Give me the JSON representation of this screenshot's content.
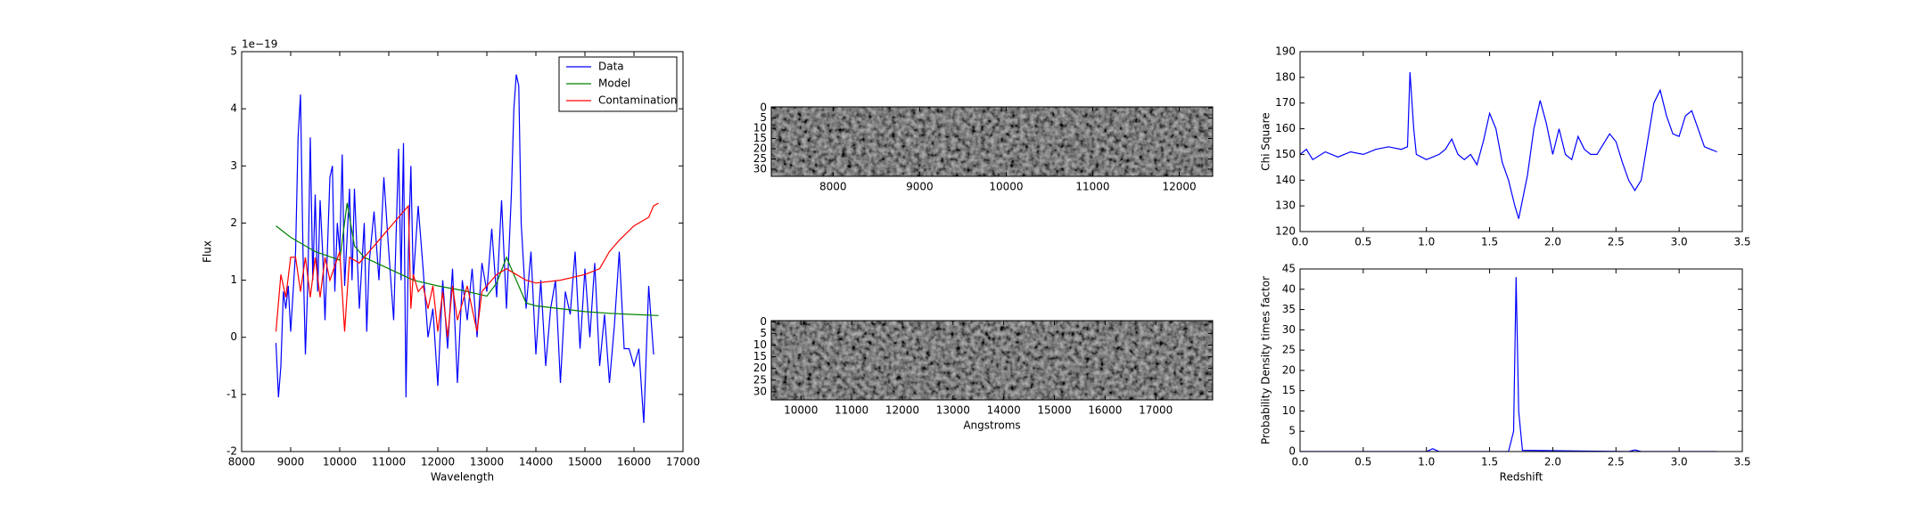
{
  "chart_data": [
    {
      "type": "line",
      "xlabel": "Wavelength",
      "ylabel": "Flux",
      "y_offset_label": "1e−19",
      "xlim": [
        8000,
        17000
      ],
      "xticks": [
        8000,
        9000,
        10000,
        11000,
        12000,
        13000,
        14000,
        15000,
        16000,
        17000
      ],
      "ylim": [
        -2,
        5
      ],
      "yticks": [
        -2,
        -1,
        0,
        1,
        2,
        3,
        4,
        5
      ],
      "legend": "upper right",
      "series": [
        {
          "name": "Data",
          "color": "#0000ff",
          "x": [
            8700,
            8750,
            8800,
            8850,
            8900,
            8950,
            9000,
            9100,
            9150,
            9200,
            9250,
            9300,
            9350,
            9400,
            9450,
            9500,
            9550,
            9600,
            9650,
            9700,
            9800,
            9850,
            9900,
            9950,
            10000,
            10050,
            10100,
            10200,
            10250,
            10300,
            10400,
            10500,
            10550,
            10600,
            10700,
            10800,
            10900,
            11000,
            11100,
            11200,
            11250,
            11300,
            11350,
            11400,
            11450,
            11500,
            11600,
            11700,
            11800,
            11900,
            12000,
            12100,
            12200,
            12300,
            12400,
            12500,
            12600,
            12700,
            12800,
            12900,
            13000,
            13100,
            13200,
            13300,
            13400,
            13500,
            13550,
            13600,
            13650,
            13700,
            13800,
            13900,
            14000,
            14100,
            14200,
            14300,
            14400,
            14500,
            14600,
            14700,
            14800,
            14900,
            15000,
            15100,
            15200,
            15300,
            15400,
            15500,
            15600,
            15700,
            15800,
            15900,
            16000,
            16100,
            16200,
            16300,
            16400
          ],
          "values": [
            -0.1,
            -1.05,
            -0.5,
            0.8,
            0.5,
            0.9,
            0.1,
            1.5,
            3.5,
            4.25,
            1.5,
            -0.3,
            1.0,
            3.5,
            1.0,
            2.5,
            0.8,
            2.4,
            1.5,
            0.3,
            2.8,
            3.0,
            0.8,
            2.0,
            1.5,
            3.2,
            0.9,
            2.6,
            1.0,
            2.6,
            0.5,
            2.0,
            0.1,
            1.3,
            2.2,
            1.0,
            2.8,
            1.5,
            0.3,
            3.3,
            1.0,
            3.4,
            -1.05,
            1.5,
            3.0,
            1.0,
            2.3,
            1.2,
            0.0,
            0.5,
            -0.85,
            1.0,
            -0.2,
            1.2,
            -0.8,
            1.0,
            0.3,
            1.2,
            0.0,
            1.3,
            0.8,
            1.9,
            0.7,
            2.4,
            0.5,
            2.5,
            4.0,
            4.6,
            4.4,
            2.0,
            0.5,
            1.5,
            -0.3,
            1.0,
            -0.5,
            0.5,
            1.0,
            -0.8,
            0.8,
            0.4,
            1.5,
            -0.2,
            1.2,
            0.0,
            1.3,
            -0.5,
            0.4,
            -0.8,
            0.2,
            1.5,
            -0.2,
            -0.2,
            -0.5,
            -0.2,
            -1.5,
            0.9,
            -0.3
          ]
        },
        {
          "name": "Model",
          "color": "#008000",
          "x": [
            8700,
            9000,
            9500,
            10000,
            10150,
            10300,
            10500,
            11000,
            11500,
            12000,
            12500,
            13000,
            13200,
            13400,
            13600,
            13800,
            14000,
            14500,
            15000,
            15500,
            16000,
            16500
          ],
          "values": [
            1.95,
            1.75,
            1.5,
            1.35,
            2.35,
            1.6,
            1.4,
            1.2,
            1.0,
            0.9,
            0.82,
            0.72,
            0.95,
            1.4,
            1.0,
            0.6,
            0.55,
            0.5,
            0.45,
            0.42,
            0.4,
            0.38
          ]
        },
        {
          "name": "Contamination",
          "color": "#ff0000",
          "x": [
            8700,
            8800,
            8900,
            9000,
            9100,
            9200,
            9300,
            9400,
            9500,
            9600,
            9700,
            9800,
            10000,
            10100,
            10200,
            10400,
            10600,
            10800,
            11000,
            11200,
            11400,
            11450,
            11500,
            11600,
            11700,
            11800,
            11900,
            12000,
            12100,
            12200,
            12300,
            12400,
            12600,
            12800,
            12900,
            13000,
            13200,
            13400,
            13600,
            13800,
            14000,
            14500,
            15000,
            15300,
            15500,
            15600,
            15700,
            16000,
            16300,
            16400,
            16500
          ],
          "values": [
            0.1,
            1.1,
            0.7,
            1.4,
            1.4,
            0.8,
            1.4,
            0.7,
            1.4,
            0.7,
            1.4,
            1.0,
            1.5,
            0.1,
            1.4,
            1.3,
            1.5,
            1.7,
            1.9,
            2.1,
            2.3,
            0.5,
            1.1,
            0.8,
            0.9,
            0.5,
            0.9,
            0.1,
            0.8,
            0.0,
            0.9,
            0.3,
            0.9,
            0.1,
            0.8,
            0.9,
            1.1,
            1.2,
            1.1,
            1.0,
            0.95,
            1.0,
            1.1,
            1.2,
            1.5,
            1.6,
            1.7,
            1.95,
            2.1,
            2.3,
            2.35
          ]
        }
      ]
    },
    {
      "type": "image",
      "xlim": [
        7286,
        12386
      ],
      "xticks": [
        8000,
        9000,
        10000,
        11000,
        12000
      ],
      "ylim": [
        33.5,
        -0.5
      ],
      "yticks": [
        0,
        5,
        10,
        15,
        20,
        25,
        30
      ]
    },
    {
      "type": "image",
      "xlabel": "Angstroms",
      "xlim": [
        9415,
        18122
      ],
      "xticks": [
        10000,
        11000,
        12000,
        13000,
        14000,
        15000,
        16000,
        17000
      ],
      "ylim": [
        33.5,
        -0.5
      ],
      "yticks": [
        0,
        5,
        10,
        15,
        20,
        25,
        30
      ]
    },
    {
      "type": "line",
      "ylabel": "Chi Square",
      "xlim": [
        0,
        3.5
      ],
      "xticks": [
        {
          "value": 0,
          "label": "0.0"
        },
        0.5,
        {
          "value": 1,
          "label": "1.0"
        },
        1.5,
        {
          "value": 2,
          "label": "2.0"
        },
        2.5,
        {
          "value": 3,
          "label": "3.0"
        },
        3.5
      ],
      "ylim": [
        120,
        190
      ],
      "yticks": [
        120,
        130,
        140,
        150,
        160,
        170,
        180,
        190
      ],
      "series": [
        {
          "color": "#0000ff",
          "x": [
            0,
            0.05,
            0.1,
            0.2,
            0.3,
            0.4,
            0.5,
            0.6,
            0.7,
            0.8,
            0.85,
            0.87,
            0.9,
            0.92,
            1.0,
            1.1,
            1.15,
            1.2,
            1.25,
            1.3,
            1.35,
            1.4,
            1.45,
            1.5,
            1.55,
            1.6,
            1.65,
            1.7,
            1.73,
            1.8,
            1.85,
            1.9,
            1.95,
            2.0,
            2.05,
            2.1,
            2.15,
            2.2,
            2.25,
            2.3,
            2.35,
            2.45,
            2.5,
            2.55,
            2.6,
            2.65,
            2.7,
            2.75,
            2.8,
            2.85,
            2.9,
            2.95,
            3.0,
            3.05,
            3.1,
            3.15,
            3.2,
            3.25,
            3.3
          ],
          "values": [
            150,
            152,
            148,
            151,
            149,
            151,
            150,
            152,
            153,
            152,
            153,
            182,
            160,
            150,
            148,
            150,
            152,
            156,
            150,
            148,
            150,
            146,
            155,
            166,
            160,
            147,
            140,
            130,
            125,
            142,
            160,
            171,
            162,
            150,
            160,
            150,
            148,
            157,
            152,
            150,
            150,
            158,
            155,
            147,
            140,
            136,
            140,
            155,
            170,
            175,
            165,
            158,
            157,
            165,
            167,
            160,
            153,
            152,
            151
          ]
        }
      ]
    },
    {
      "type": "line",
      "xlabel": "Redshift",
      "ylabel": "Probability Density times factor",
      "xlim": [
        0,
        3.5
      ],
      "xticks": [
        {
          "value": 0,
          "label": "0.0"
        },
        0.5,
        {
          "value": 1,
          "label": "1.0"
        },
        1.5,
        {
          "value": 2,
          "label": "2.0"
        },
        2.5,
        {
          "value": 3,
          "label": "3.0"
        },
        3.5
      ],
      "ylim": [
        0,
        45
      ],
      "yticks": [
        0,
        5,
        10,
        15,
        20,
        25,
        30,
        35,
        40,
        45
      ],
      "series": [
        {
          "color": "#0000ff",
          "x": [
            0,
            1.0,
            1.05,
            1.1,
            1.65,
            1.69,
            1.71,
            1.73,
            1.76,
            2.6,
            2.65,
            2.7,
            3.3
          ],
          "values": [
            0,
            0,
            0.7,
            0,
            0,
            5,
            43,
            10,
            0.3,
            0,
            0.4,
            0,
            0
          ]
        }
      ]
    }
  ]
}
